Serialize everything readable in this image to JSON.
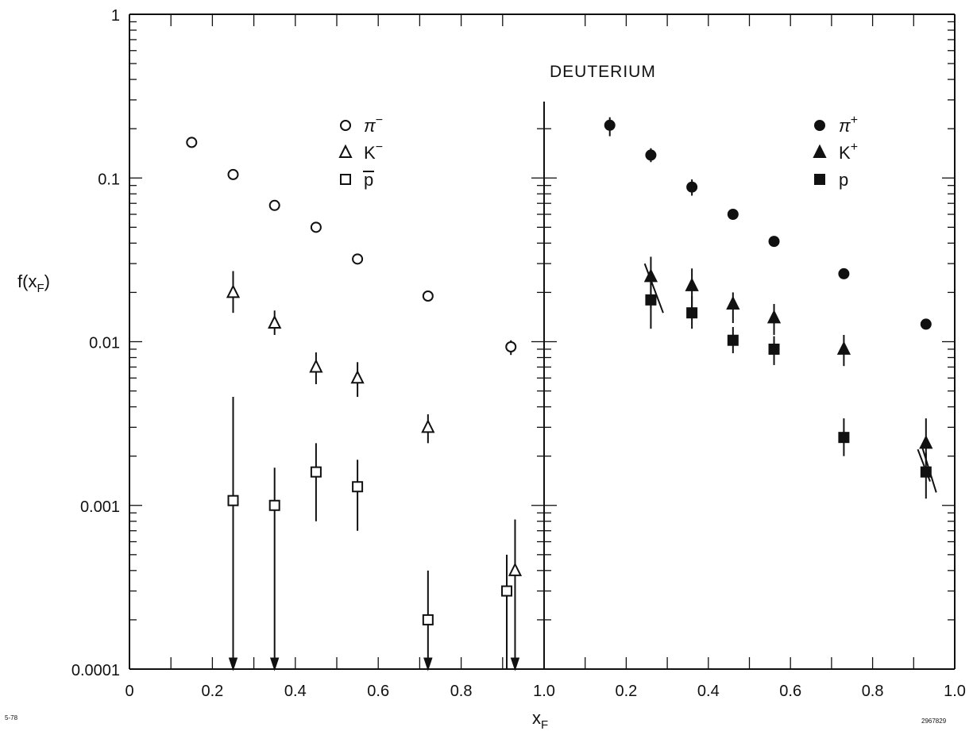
{
  "chart_data": {
    "type": "scatter",
    "title": "DEUTERIUM",
    "xlabel_main": "x",
    "xlabel_sub": "F",
    "ylabel_main": "f(x",
    "ylabel_sub": "F",
    "ylabel_close": ")",
    "y_scale": "log",
    "ylim": [
      0.0001,
      1
    ],
    "grid": false,
    "y_tick_labels": [
      {
        "value": 1,
        "label": "1"
      },
      {
        "value": 0.1,
        "label": "0.1"
      },
      {
        "value": 0.01,
        "label": "0.01"
      },
      {
        "value": 0.001,
        "label": "0.001"
      },
      {
        "value": 0.0001,
        "label": "0.0001"
      }
    ],
    "corner_left": "5-78",
    "corner_right": "2967829",
    "panels": [
      {
        "side": "left",
        "xlim": [
          0,
          1.0
        ],
        "x_tick_labels": [
          {
            "value": 0,
            "label": "0"
          },
          {
            "value": 0.2,
            "label": "0.2"
          },
          {
            "value": 0.4,
            "label": "0.4"
          },
          {
            "value": 0.6,
            "label": "0.6"
          },
          {
            "value": 0.8,
            "label": "0.8"
          },
          {
            "value": 1.0,
            "label": "1.0"
          }
        ],
        "legend_position": "top-center",
        "series": [
          {
            "name": "π",
            "sup": "−",
            "marker": "circle-open",
            "x": [
              0.15,
              0.25,
              0.35,
              0.45,
              0.55,
              0.72,
              0.92
            ],
            "y": [
              0.165,
              0.105,
              0.068,
              0.05,
              0.032,
              0.019,
              0.0093
            ],
            "err_lo": [
              null,
              null,
              null,
              null,
              null,
              null,
              0.0083
            ],
            "err_hi": [
              null,
              null,
              null,
              null,
              null,
              null,
              0.0102
            ]
          },
          {
            "name": "K",
            "sup": "−",
            "marker": "triangle-open",
            "x": [
              0.25,
              0.35,
              0.45,
              0.55,
              0.72,
              0.93
            ],
            "y": [
              0.02,
              0.013,
              0.007,
              0.006,
              0.003,
              0.0004
            ],
            "err_lo": [
              0.015,
              0.011,
              0.0055,
              0.0046,
              0.0024,
              0.0001
            ],
            "err_hi": [
              0.027,
              0.0155,
              0.0086,
              0.0075,
              0.0036,
              0.00082
            ],
            "upper_limit_arrow": [
              false,
              false,
              false,
              false,
              false,
              true
            ]
          },
          {
            "name": "p",
            "overline": true,
            "marker": "square-open",
            "x": [
              0.25,
              0.35,
              0.45,
              0.55,
              0.72,
              0.91
            ],
            "y": [
              0.00107,
              0.001,
              0.0016,
              0.0013,
              0.0002,
              0.0003
            ],
            "err_lo": [
              0.0001,
              0.0001,
              0.0008,
              0.0007,
              0.0001,
              0.0001
            ],
            "err_hi": [
              0.0046,
              0.0017,
              0.0024,
              0.0019,
              0.0004,
              0.0005
            ],
            "upper_limit_arrow": [
              true,
              true,
              false,
              false,
              true,
              false
            ]
          }
        ]
      },
      {
        "side": "right",
        "xlim": [
          0,
          1.0
        ],
        "x_tick_labels": [
          {
            "value": 0.2,
            "label": "0.2"
          },
          {
            "value": 0.4,
            "label": "0.4"
          },
          {
            "value": 0.6,
            "label": "0.6"
          },
          {
            "value": 0.8,
            "label": "0.8"
          },
          {
            "value": 1.0,
            "label": "1.0"
          }
        ],
        "legend_position": "top-right",
        "series": [
          {
            "name": "π",
            "sup": "+",
            "marker": "circle-filled",
            "x": [
              0.16,
              0.26,
              0.36,
              0.46,
              0.56,
              0.73,
              0.93
            ],
            "y": [
              0.21,
              0.138,
              0.088,
              0.06,
              0.041,
              0.026,
              0.0128
            ],
            "err_lo": [
              0.18,
              0.125,
              0.078,
              null,
              null,
              null,
              null
            ],
            "err_hi": [
              0.235,
              0.152,
              0.098,
              null,
              null,
              null,
              null
            ]
          },
          {
            "name": "K",
            "sup": "+",
            "marker": "triangle-filled",
            "x": [
              0.26,
              0.36,
              0.46,
              0.56,
              0.73,
              0.93
            ],
            "y": [
              0.025,
              0.022,
              0.017,
              0.014,
              0.009,
              0.0024
            ],
            "err_lo": [
              0.016,
              0.016,
              0.013,
              0.011,
              0.0071,
              0.0018
            ],
            "err_hi": [
              0.033,
              0.028,
              0.02,
              0.017,
              0.011,
              0.0034
            ]
          },
          {
            "name": "p",
            "marker": "square-filled",
            "x": [
              0.26,
              0.36,
              0.46,
              0.56,
              0.73,
              0.93
            ],
            "y": [
              0.018,
              0.015,
              0.0102,
              0.009,
              0.0026,
              0.0016
            ],
            "err_lo": [
              0.012,
              0.012,
              0.0085,
              0.0072,
              0.002,
              0.0011
            ],
            "err_hi": [
              0.024,
              0.019,
              0.0123,
              0.0108,
              0.0034,
              0.0021
            ]
          }
        ],
        "slanted_segments": [
          {
            "x1": 0.245,
            "y1": 0.03,
            "x2": 0.29,
            "y2": 0.015
          },
          {
            "x1": 0.91,
            "y1": 0.0022,
            "x2": 0.94,
            "y2": 0.0014
          },
          {
            "x1": 0.92,
            "y1": 0.0023,
            "x2": 0.955,
            "y2": 0.0012
          }
        ]
      }
    ]
  }
}
